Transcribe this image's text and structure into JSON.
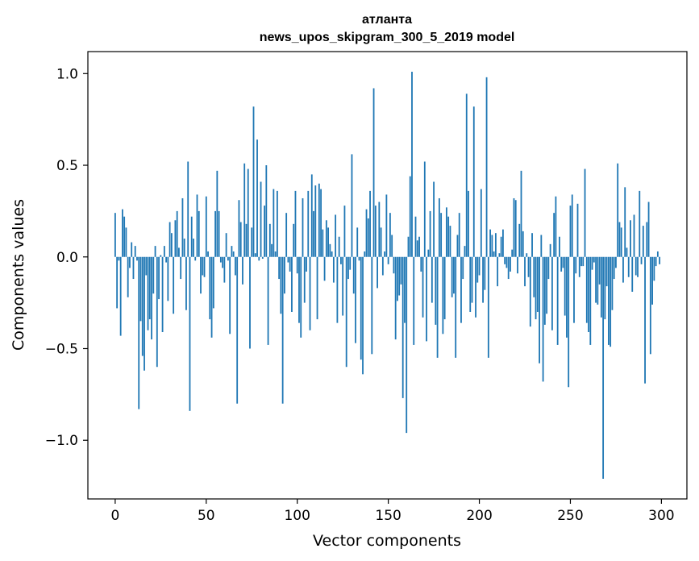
{
  "chart_data": {
    "type": "bar",
    "title": "атланта",
    "subtitle": "news_upos_skipgram_300_5_2019 model",
    "xlabel": "Vector components",
    "ylabel": "Components values",
    "xlim": [
      -15,
      314
    ],
    "ylim": [
      -1.32,
      1.12
    ],
    "xticks": [
      0,
      50,
      100,
      150,
      200,
      250,
      300
    ],
    "yticks": [
      -1.0,
      -0.5,
      0.0,
      0.5,
      1.0
    ],
    "ytick_labels": [
      "−1.0",
      "−0.5",
      "0.0",
      "0.5",
      "1.0"
    ],
    "grid": false,
    "color": "#1f77b4",
    "values": [
      0.24,
      -0.28,
      -0.02,
      -0.43,
      0.26,
      0.22,
      0.16,
      -0.22,
      -0.06,
      0.08,
      -0.12,
      0.06,
      -0.02,
      -0.83,
      -0.35,
      -0.54,
      -0.62,
      -0.1,
      -0.4,
      -0.34,
      -0.45,
      -0.2,
      0.06,
      -0.6,
      -0.23,
      0.01,
      -0.41,
      0.06,
      -0.03,
      -0.24,
      0.19,
      0.13,
      -0.31,
      0.2,
      0.25,
      0.05,
      -0.12,
      0.32,
      0.1,
      -0.29,
      0.52,
      -0.84,
      0.22,
      0.1,
      -0.02,
      0.34,
      0.25,
      -0.2,
      -0.1,
      -0.11,
      0.33,
      0.03,
      -0.34,
      -0.44,
      -0.28,
      0.25,
      0.47,
      0.25,
      -0.03,
      -0.06,
      -0.14,
      0.13,
      -0.02,
      -0.42,
      0.06,
      0.03,
      -0.1,
      -0.8,
      0.31,
      0.19,
      -0.15,
      0.51,
      0.18,
      0.48,
      -0.5,
      0.16,
      0.82,
      0.02,
      0.64,
      -0.02,
      0.41,
      -0.01,
      0.28,
      0.5,
      -0.48,
      0.18,
      0.07,
      0.37,
      0.03,
      0.36,
      -0.12,
      -0.31,
      -0.8,
      -0.2,
      0.24,
      -0.03,
      -0.08,
      -0.3,
      0.18,
      0.36,
      -0.09,
      -0.36,
      -0.44,
      0.32,
      -0.25,
      -0.08,
      0.36,
      -0.4,
      0.45,
      0.25,
      0.39,
      -0.34,
      0.4,
      0.37,
      0.15,
      -0.13,
      0.2,
      0.16,
      0.07,
      0.03,
      -0.14,
      0.23,
      -0.36,
      0.11,
      -0.04,
      -0.32,
      0.28,
      -0.6,
      -0.12,
      -0.07,
      0.56,
      -0.2,
      -0.47,
      0.16,
      -0.02,
      -0.56,
      -0.64,
      0.03,
      0.26,
      0.21,
      0.36,
      -0.53,
      0.92,
      0.28,
      -0.17,
      0.3,
      0.16,
      -0.1,
      0.03,
      0.34,
      -0.04,
      0.24,
      0.12,
      -0.09,
      -0.45,
      -0.24,
      -0.21,
      -0.15,
      -0.77,
      -0.36,
      -0.96,
      0.11,
      0.44,
      1.01,
      -0.48,
      0.22,
      0.09,
      0.11,
      -0.08,
      -0.33,
      0.52,
      -0.46,
      0.04,
      0.25,
      -0.25,
      0.41,
      -0.37,
      -0.55,
      0.32,
      0.24,
      -0.42,
      -0.34,
      0.27,
      0.22,
      0.17,
      -0.22,
      -0.2,
      -0.55,
      0.12,
      0.24,
      -0.36,
      -0.12,
      0.06,
      0.89,
      0.36,
      -0.3,
      -0.25,
      0.82,
      -0.33,
      -0.14,
      -0.1,
      0.37,
      -0.25,
      -0.18,
      0.98,
      -0.55,
      0.15,
      0.12,
      0.03,
      0.13,
      -0.16,
      0.02,
      0.11,
      0.15,
      -0.04,
      -0.06,
      -0.12,
      -0.08,
      0.04,
      0.32,
      0.31,
      -0.09,
      0.18,
      0.47,
      0.14,
      -0.16,
      0.02,
      -0.11,
      -0.38,
      0.13,
      -0.22,
      -0.34,
      -0.3,
      -0.58,
      0.12,
      -0.68,
      -0.37,
      -0.31,
      -0.12,
      0.07,
      -0.4,
      0.24,
      0.33,
      -0.48,
      0.11,
      -0.08,
      -0.06,
      -0.32,
      -0.44,
      -0.71,
      0.28,
      0.34,
      -0.36,
      -0.09,
      0.29,
      -0.11,
      -0.05,
      -0.05,
      0.48,
      -0.36,
      -0.41,
      -0.48,
      -0.07,
      -0.03,
      -0.25,
      -0.26,
      -0.15,
      -0.33,
      -1.21,
      -0.34,
      -0.16,
      -0.48,
      -0.49,
      -0.29,
      -0.12,
      -0.06,
      0.51,
      0.19,
      0.16,
      -0.14,
      0.38,
      0.05,
      -0.11,
      0.2,
      -0.19,
      0.23,
      -0.1,
      -0.11,
      0.36,
      -0.04,
      0.17,
      -0.69,
      0.19,
      0.3,
      -0.53,
      -0.26,
      -0.13,
      -0.05,
      0.03,
      -0.04
    ]
  }
}
